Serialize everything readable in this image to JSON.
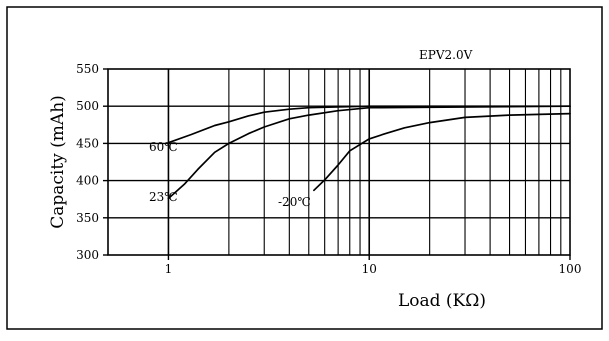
{
  "chart_data": {
    "type": "line",
    "title": "",
    "xlabel": "Load (KΩ)",
    "ylabel": "Capacity (mAh)",
    "x_scale": "log",
    "xlim": [
      0.5,
      100
    ],
    "ylim": [
      300,
      550
    ],
    "x_ticks": [
      "1",
      "10",
      "100"
    ],
    "y_ticks": [
      "300",
      "350",
      "400",
      "450",
      "500",
      "550"
    ],
    "grid": true,
    "legend": "none",
    "annotations": [
      "EPV2.0V"
    ],
    "series": [
      {
        "name": "60℃",
        "points": [
          [
            1,
            451
          ],
          [
            1.3,
            462
          ],
          [
            1.7,
            474
          ],
          [
            2,
            479
          ],
          [
            2.5,
            487
          ],
          [
            3,
            492
          ],
          [
            4,
            496
          ],
          [
            5,
            498
          ],
          [
            7,
            499
          ],
          [
            10,
            500
          ],
          [
            100,
            500
          ]
        ]
      },
      {
        "name": "23℃",
        "points": [
          [
            1,
            376
          ],
          [
            1.2,
            395
          ],
          [
            1.4,
            415
          ],
          [
            1.7,
            438
          ],
          [
            2,
            450
          ],
          [
            2.5,
            463
          ],
          [
            3,
            472
          ],
          [
            4,
            483
          ],
          [
            5,
            488
          ],
          [
            7,
            494
          ],
          [
            10,
            498
          ],
          [
            100,
            500
          ]
        ]
      },
      {
        "name": "-20℃",
        "points": [
          [
            5.3,
            387
          ],
          [
            6,
            401
          ],
          [
            7,
            421
          ],
          [
            8,
            440
          ],
          [
            10,
            456
          ],
          [
            12,
            463
          ],
          [
            15,
            471
          ],
          [
            20,
            478
          ],
          [
            30,
            485
          ],
          [
            50,
            488
          ],
          [
            70,
            489
          ],
          [
            100,
            490
          ]
        ]
      }
    ]
  },
  "colors": {
    "line": "#000000",
    "grid": "#000000"
  }
}
